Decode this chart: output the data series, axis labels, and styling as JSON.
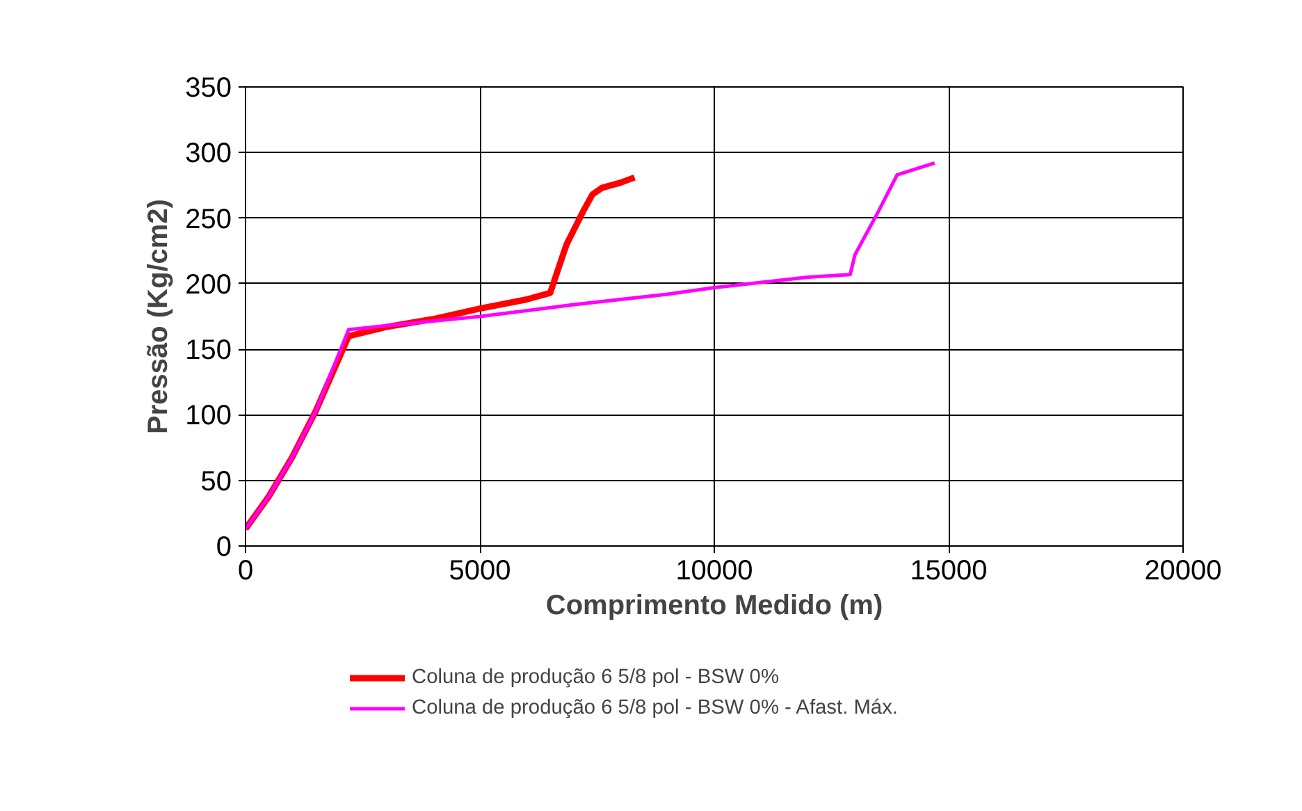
{
  "chart_data": {
    "type": "line",
    "xlabel": "Comprimento Medido (m)",
    "ylabel": "Pressão (Kg/cm2)",
    "xlim": [
      0,
      20000
    ],
    "xticks": [
      0,
      5000,
      10000,
      15000,
      20000
    ],
    "ylim": [
      0,
      350
    ],
    "yticks": [
      0,
      50,
      100,
      150,
      200,
      250,
      300,
      350
    ],
    "grid": true,
    "legend": "bottom",
    "marker": "none",
    "line_style": "solid",
    "series": [
      {
        "name": "Coluna de produção 6 5/8 pol - BSW 0%",
        "color": "#ff0000",
        "x": [
          0,
          500,
          1000,
          1500,
          2200,
          3000,
          4000,
          5000,
          6000,
          6500,
          6800,
          6850,
          7200,
          7400,
          7600,
          8000,
          8300
        ],
        "values": [
          13,
          38,
          68,
          103,
          160,
          167,
          173,
          181,
          188,
          193,
          225,
          230,
          255,
          268,
          273,
          277,
          281
        ]
      },
      {
        "name": "Coluna de produção 6 5/8 pol - BSW 0% - Afast. Máx.",
        "color": "#ff00ff",
        "x": [
          0,
          500,
          1000,
          1500,
          2200,
          3000,
          5000,
          7000,
          9000,
          10000,
          11000,
          12000,
          12900,
          13000,
          13500,
          13900,
          14700
        ],
        "values": [
          13,
          38,
          68,
          103,
          165,
          168,
          175,
          184,
          192,
          197,
          201,
          205,
          207,
          222,
          255,
          283,
          292
        ]
      }
    ]
  }
}
